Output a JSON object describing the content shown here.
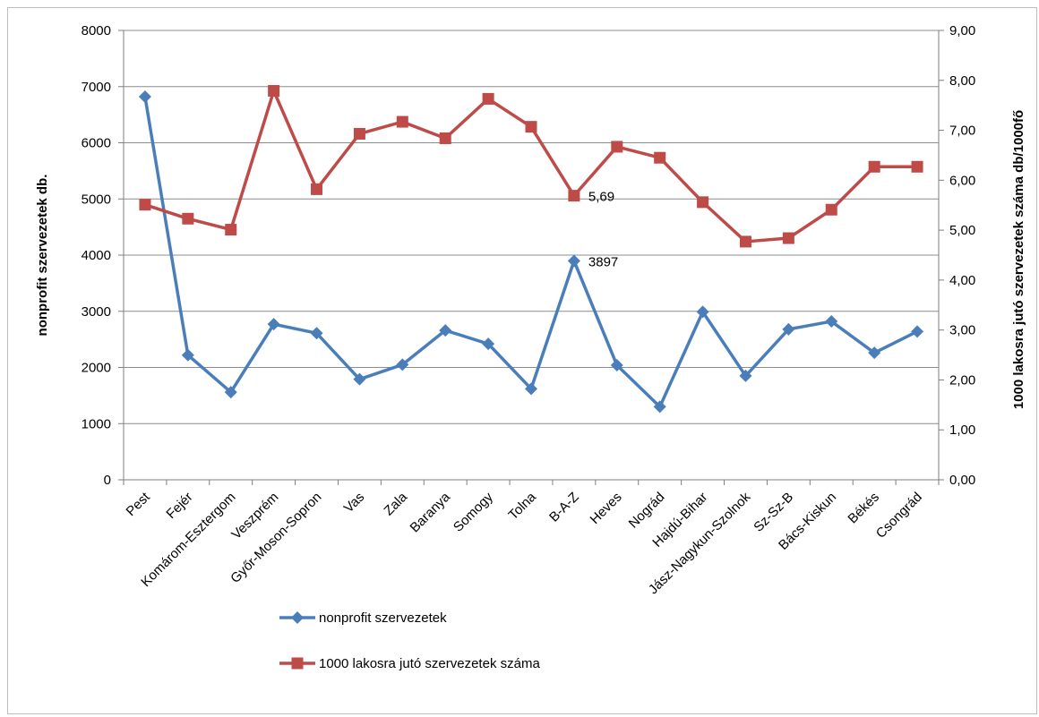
{
  "colors": {
    "series1": "#4a7ebb",
    "series2": "#be4b48",
    "grid": "#8c8c8c",
    "axis": "#7f7f7f"
  },
  "chart_data": {
    "type": "line",
    "categories": [
      "Pest",
      "Fejér",
      "Komárom-Esztergom",
      "Veszprém",
      "Győr-Moson-Sopron",
      "Vas",
      "Zala",
      "Baranya",
      "Somogy",
      "Tolna",
      "B-A-Z",
      "Heves",
      "Nográd",
      "Hajdú-Bihar",
      "Jász-Nagykun-Szolnok",
      "Sz-Sz-B",
      "Bács-Kiskun",
      "Békés",
      "Csongrád"
    ],
    "series": [
      {
        "name": "nonprofit szervezetek",
        "axis": "left",
        "marker": "diamond",
        "values": [
          6820,
          2220,
          1560,
          2770,
          2610,
          1790,
          2050,
          2660,
          2420,
          1620,
          3897,
          2040,
          1300,
          2990,
          1850,
          2680,
          2820,
          2260,
          2640
        ]
      },
      {
        "name": "1000 lakosra jutó szervezetek száma",
        "axis": "right",
        "marker": "square",
        "values": [
          5.51,
          5.23,
          5.01,
          7.79,
          5.82,
          6.93,
          7.17,
          6.84,
          7.63,
          7.07,
          5.69,
          6.67,
          6.45,
          5.56,
          4.77,
          4.84,
          5.41,
          6.27,
          6.27
        ]
      }
    ],
    "data_labels": [
      {
        "series": 0,
        "index": 10,
        "text": "3897"
      },
      {
        "series": 1,
        "index": 10,
        "text": "5,69"
      }
    ],
    "left_axis": {
      "title": "nonprofit szervezetek db.",
      "ylim": [
        0,
        8000
      ],
      "ticks": [
        "0",
        "1000",
        "2000",
        "3000",
        "4000",
        "5000",
        "6000",
        "7000",
        "8000"
      ]
    },
    "right_axis": {
      "title": "1000 lakosra jutó szervezetek száma db/1000fő",
      "ylim": [
        0,
        9
      ],
      "ticks": [
        "0,00",
        "1,00",
        "2,00",
        "3,00",
        "4,00",
        "5,00",
        "6,00",
        "7,00",
        "8,00",
        "9,00"
      ]
    },
    "grid": true,
    "legend_position": "bottom-center"
  }
}
